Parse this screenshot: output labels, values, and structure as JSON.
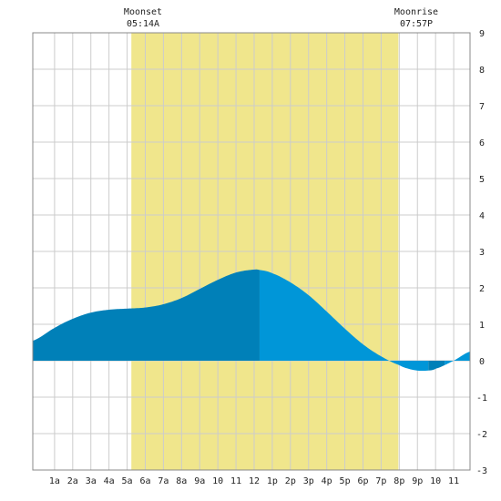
{
  "chart_data": {
    "type": "area",
    "moon": {
      "moonset": {
        "label": "Moonset",
        "time": "05:14A",
        "hour": 5.233
      },
      "moonrise": {
        "label": "Moonrise",
        "time": "07:57P",
        "hour": 19.95
      }
    },
    "x_ticks": [
      {
        "hour": 1,
        "label": "1a"
      },
      {
        "hour": 2,
        "label": "2a"
      },
      {
        "hour": 3,
        "label": "3a"
      },
      {
        "hour": 4,
        "label": "4a"
      },
      {
        "hour": 5,
        "label": "5a"
      },
      {
        "hour": 6,
        "label": "6a"
      },
      {
        "hour": 7,
        "label": "7a"
      },
      {
        "hour": 8,
        "label": "8a"
      },
      {
        "hour": 9,
        "label": "9a"
      },
      {
        "hour": 10,
        "label": "10"
      },
      {
        "hour": 11,
        "label": "11"
      },
      {
        "hour": 12,
        "label": "12"
      },
      {
        "hour": 13,
        "label": "1p"
      },
      {
        "hour": 14,
        "label": "2p"
      },
      {
        "hour": 15,
        "label": "3p"
      },
      {
        "hour": 16,
        "label": "4p"
      },
      {
        "hour": 17,
        "label": "5p"
      },
      {
        "hour": 18,
        "label": "6p"
      },
      {
        "hour": 19,
        "label": "7p"
      },
      {
        "hour": 20,
        "label": "8p"
      },
      {
        "hour": 21,
        "label": "9p"
      },
      {
        "hour": 22,
        "label": "10"
      },
      {
        "hour": 23,
        "label": "11"
      }
    ],
    "y_ticks": [
      9,
      8,
      7,
      6,
      5,
      4,
      3,
      2,
      1,
      0,
      -1,
      -2,
      -3
    ],
    "xlim": [
      -0.2,
      23.9
    ],
    "ylim": [
      -3,
      9
    ],
    "grid": true,
    "colors": {
      "moon_band": "#f0e68c",
      "tide_dark": "#0080b8",
      "tide_light": "#0096d8",
      "grid": "#cccccc",
      "border": "#888888"
    },
    "series": [
      {
        "x": [
          -0.2,
          1,
          2,
          3,
          4,
          5,
          6,
          7,
          8,
          9,
          10,
          11,
          12,
          12.3,
          13,
          14,
          15,
          16,
          17,
          18,
          19,
          20,
          20.5,
          21,
          21.6,
          22,
          23,
          23.9
        ],
        "y": [
          0.55,
          0.9,
          1.15,
          1.32,
          1.4,
          1.43,
          1.46,
          1.55,
          1.72,
          1.97,
          2.22,
          2.42,
          2.5,
          2.49,
          2.4,
          2.15,
          1.8,
          1.35,
          0.88,
          0.45,
          0.12,
          -0.12,
          -0.22,
          -0.27,
          -0.27,
          -0.22,
          0.0,
          0.25
        ],
        "shading": [
          {
            "from": -0.2,
            "to": 12.3,
            "tone": "dark"
          },
          {
            "from": 12.3,
            "to": 21.6,
            "tone": "light"
          },
          {
            "from": 21.6,
            "to": 22.5,
            "tone": "dark"
          },
          {
            "from": 22.5,
            "to": 23.9,
            "tone": "light"
          }
        ]
      }
    ]
  }
}
